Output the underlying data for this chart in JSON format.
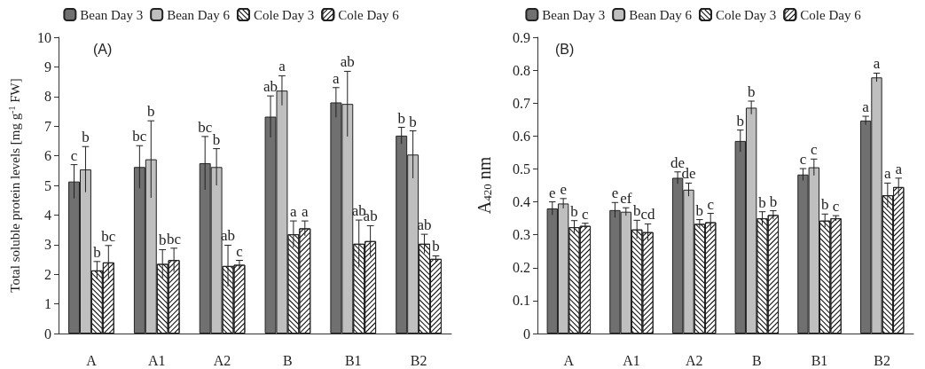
{
  "chart_data": [
    {
      "type": "bar",
      "title": "(A)",
      "ylabel": "Total soluble protein levels [mg g$^{-1}$ FW]",
      "categories": [
        "A",
        "A1",
        "A2",
        "B",
        "B1",
        "B2"
      ],
      "series": [
        {
          "name": "Bean Day 3",
          "color": "#707070",
          "values": [
            5.13,
            5.62,
            5.75,
            7.32,
            7.8,
            6.68
          ],
          "errors": [
            0.57,
            0.72,
            0.9,
            0.7,
            0.5,
            0.28
          ],
          "value_labels": [
            "c",
            "bc",
            "bc",
            "ab",
            "a",
            "b"
          ]
        },
        {
          "name": "Bean Day 6",
          "color": "#bfbfbf",
          "values": [
            5.54,
            5.88,
            5.62,
            8.2,
            7.75,
            6.04
          ],
          "errors": [
            0.77,
            1.3,
            0.62,
            0.5,
            1.1,
            0.8
          ],
          "value_labels": [
            "b",
            "b",
            "b",
            "a",
            "ab",
            "b"
          ]
        },
        {
          "name": "Cole Day 3",
          "color": "#ffffff",
          "values": [
            2.13,
            2.35,
            2.28,
            3.35,
            3.03,
            3.03
          ],
          "errors": [
            0.3,
            0.48,
            0.7,
            0.45,
            0.8,
            0.32
          ],
          "value_labels": [
            "b",
            "b",
            "ab",
            "a",
            "ab",
            "ab"
          ]
        },
        {
          "name": "Cole Day 6",
          "color": "#ffffff",
          "values": [
            2.4,
            2.48,
            2.32,
            3.55,
            3.12,
            2.52
          ],
          "errors": [
            0.57,
            0.4,
            0.15,
            0.25,
            0.52,
            0.1
          ],
          "value_labels": [
            "bc",
            "bc",
            "c",
            "a",
            "ab",
            "b"
          ]
        }
      ],
      "ylim": [
        0,
        10
      ],
      "yticks": [
        0,
        1,
        2,
        3,
        4,
        5,
        6,
        7,
        8,
        9,
        10
      ],
      "grid": false,
      "legend": "top"
    },
    {
      "type": "bar",
      "title": "(B)",
      "ylabel": "A$_{420}$ nm",
      "categories": [
        "A",
        "A1",
        "A2",
        "B",
        "B1",
        "B2"
      ],
      "series": [
        {
          "name": "Bean Day 3",
          "color": "#707070",
          "values": [
            0.38,
            0.375,
            0.473,
            0.585,
            0.483,
            0.647
          ],
          "errors": [
            0.02,
            0.023,
            0.018,
            0.033,
            0.018,
            0.013
          ],
          "value_labels": [
            "e",
            "e",
            "de",
            "b",
            "c",
            "a"
          ]
        },
        {
          "name": "Bean Day 6",
          "color": "#bfbfbf",
          "values": [
            0.395,
            0.37,
            0.437,
            0.686,
            0.505,
            0.778
          ],
          "errors": [
            0.015,
            0.012,
            0.02,
            0.02,
            0.025,
            0.013
          ],
          "value_labels": [
            "e",
            "ef",
            "de",
            "b",
            "c",
            "a"
          ]
        },
        {
          "name": "Cole Day 3",
          "color": "#ffffff",
          "values": [
            0.323,
            0.316,
            0.333,
            0.35,
            0.343,
            0.42
          ],
          "errors": [
            0.02,
            0.028,
            0.013,
            0.02,
            0.02,
            0.037
          ],
          "value_labels": [
            "b",
            "b",
            "b",
            "b",
            "b",
            "a"
          ]
        },
        {
          "name": "Cole Day 6",
          "color": "#ffffff",
          "values": [
            0.327,
            0.308,
            0.338,
            0.36,
            0.35,
            0.445
          ],
          "errors": [
            0.008,
            0.025,
            0.027,
            0.013,
            0.008,
            0.027
          ],
          "value_labels": [
            "c",
            "cd",
            "c",
            "b",
            "c",
            "a"
          ]
        }
      ],
      "ylim": [
        0,
        0.9
      ],
      "yticks": [
        0,
        0.1,
        0.2,
        0.3,
        0.4,
        0.5,
        0.6,
        0.7,
        0.8,
        0.9
      ],
      "grid": false,
      "legend": "top"
    }
  ]
}
